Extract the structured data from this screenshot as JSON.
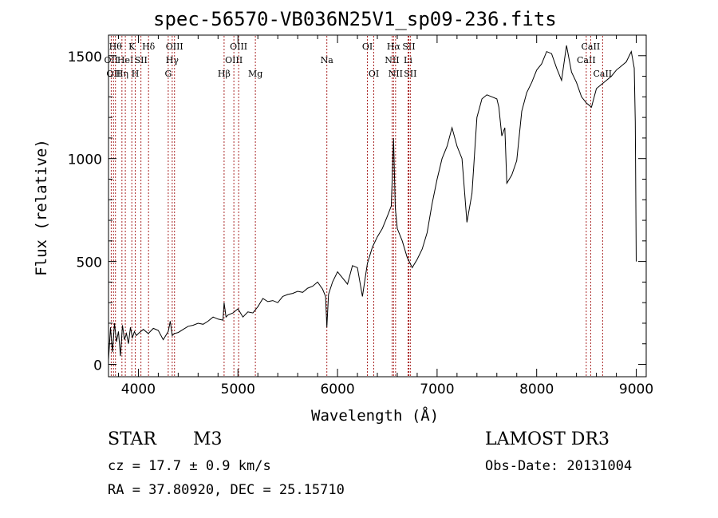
{
  "chart_data": {
    "type": "line",
    "title": "spec-56570-VB036N25V1_sp09-236.fits",
    "xlabel": "Wavelength (Å)",
    "ylabel": "Flux (relative)",
    "xlim": [
      3700,
      9100
    ],
    "ylim": [
      -60,
      1600
    ],
    "xticks": [
      4000,
      5000,
      6000,
      7000,
      8000,
      9000
    ],
    "yticks": [
      0,
      500,
      1000,
      1500
    ],
    "grid": false,
    "series": [
      {
        "name": "spectrum",
        "x": [
          3700,
          3720,
          3740,
          3760,
          3780,
          3800,
          3820,
          3840,
          3860,
          3880,
          3900,
          3920,
          3940,
          3960,
          3980,
          4000,
          4050,
          4100,
          4150,
          4200,
          4250,
          4300,
          4320,
          4340,
          4360,
          4400,
          4450,
          4500,
          4550,
          4600,
          4650,
          4700,
          4750,
          4800,
          4850,
          4861,
          4880,
          4900,
          4950,
          5000,
          5050,
          5100,
          5150,
          5200,
          5250,
          5300,
          5350,
          5400,
          5450,
          5500,
          5550,
          5600,
          5650,
          5700,
          5750,
          5800,
          5850,
          5880,
          5893,
          5910,
          5950,
          6000,
          6050,
          6100,
          6150,
          6200,
          6250,
          6300,
          6350,
          6400,
          6450,
          6500,
          6540,
          6563,
          6580,
          6600,
          6650,
          6700,
          6750,
          6800,
          6850,
          6900,
          6950,
          7000,
          7050,
          7100,
          7150,
          7200,
          7250,
          7300,
          7350,
          7400,
          7450,
          7500,
          7550,
          7600,
          7620,
          7650,
          7680,
          7700,
          7750,
          7800,
          7850,
          7900,
          7950,
          8000,
          8050,
          8100,
          8150,
          8200,
          8250,
          8300,
          8350,
          8400,
          8450,
          8500,
          8550,
          8600,
          8650,
          8700,
          8750,
          8800,
          8850,
          8900,
          8950,
          8980,
          8990,
          9000
        ],
        "values": [
          20,
          180,
          60,
          200,
          110,
          160,
          40,
          190,
          120,
          150,
          100,
          180,
          130,
          160,
          140,
          150,
          170,
          150,
          175,
          165,
          120,
          160,
          210,
          140,
          150,
          155,
          170,
          185,
          190,
          200,
          195,
          210,
          230,
          220,
          215,
          300,
          230,
          240,
          250,
          270,
          230,
          255,
          250,
          280,
          320,
          305,
          310,
          300,
          330,
          340,
          345,
          355,
          350,
          370,
          380,
          400,
          365,
          330,
          180,
          340,
          400,
          450,
          420,
          390,
          480,
          470,
          330,
          490,
          570,
          620,
          660,
          720,
          770,
          1100,
          760,
          660,
          600,
          520,
          470,
          510,
          560,
          640,
          780,
          900,
          1000,
          1060,
          1150,
          1060,
          1000,
          690,
          830,
          1200,
          1290,
          1310,
          1300,
          1290,
          1250,
          1110,
          1150,
          880,
          920,
          990,
          1230,
          1320,
          1370,
          1430,
          1460,
          1520,
          1510,
          1440,
          1380,
          1550,
          1420,
          1370,
          1300,
          1270,
          1250,
          1340,
          1360,
          1380,
          1400,
          1430,
          1450,
          1470,
          1520,
          1440,
          1180,
          500
        ]
      }
    ],
    "line_markers": [
      {
        "wavelength": 3727,
        "label": "OII",
        "row": 1
      },
      {
        "wavelength": 3750,
        "label": "OII",
        "row": 2
      },
      {
        "wavelength": 3770,
        "label": "Hθ",
        "row": 0
      },
      {
        "wavelength": 3835,
        "label": "Hη",
        "row": 2
      },
      {
        "wavelength": 3869,
        "label": "HeI",
        "row": 1
      },
      {
        "wavelength": 3934,
        "label": "K",
        "row": 0
      },
      {
        "wavelength": 3969,
        "label": "H",
        "row": 2
      },
      {
        "wavelength": 4026,
        "label": "SII",
        "row": 1
      },
      {
        "wavelength": 4102,
        "label": "Hδ",
        "row": 0
      },
      {
        "wavelength": 4300,
        "label": "G",
        "row": 2
      },
      {
        "wavelength": 4340,
        "label": "Hγ",
        "row": 1
      },
      {
        "wavelength": 4363,
        "label": "OIII",
        "row": 0
      },
      {
        "wavelength": 4861,
        "label": "Hβ",
        "row": 2
      },
      {
        "wavelength": 4959,
        "label": "OIII",
        "row": 1
      },
      {
        "wavelength": 5007,
        "label": "OIII",
        "row": 0
      },
      {
        "wavelength": 5175,
        "label": "Mg",
        "row": 2
      },
      {
        "wavelength": 5893,
        "label": "Na",
        "row": 1
      },
      {
        "wavelength": 6300,
        "label": "OI",
        "row": 0
      },
      {
        "wavelength": 6364,
        "label": "OI",
        "row": 2
      },
      {
        "wavelength": 6548,
        "label": "NII",
        "row": 1
      },
      {
        "wavelength": 6563,
        "label": "Hα",
        "row": 0
      },
      {
        "wavelength": 6583,
        "label": "NII",
        "row": 2
      },
      {
        "wavelength": 6708,
        "label": "Li",
        "row": 1
      },
      {
        "wavelength": 6716,
        "label": "SII",
        "row": 0
      },
      {
        "wavelength": 6731,
        "label": "SII",
        "row": 2
      },
      {
        "wavelength": 8498,
        "label": "CaII",
        "row": 1
      },
      {
        "wavelength": 8542,
        "label": "CaII",
        "row": 0
      },
      {
        "wavelength": 8662,
        "label": "CaII",
        "row": 2
      }
    ]
  },
  "info": {
    "object_class": "STAR",
    "subclass": "M3",
    "survey": "LAMOST DR3",
    "redshift": "cz = 17.7 ± 0.9 km/s",
    "obs_date": "Obs-Date: 20131004",
    "coordinates": "RA =  37.80920, DEC =  25.15710"
  }
}
